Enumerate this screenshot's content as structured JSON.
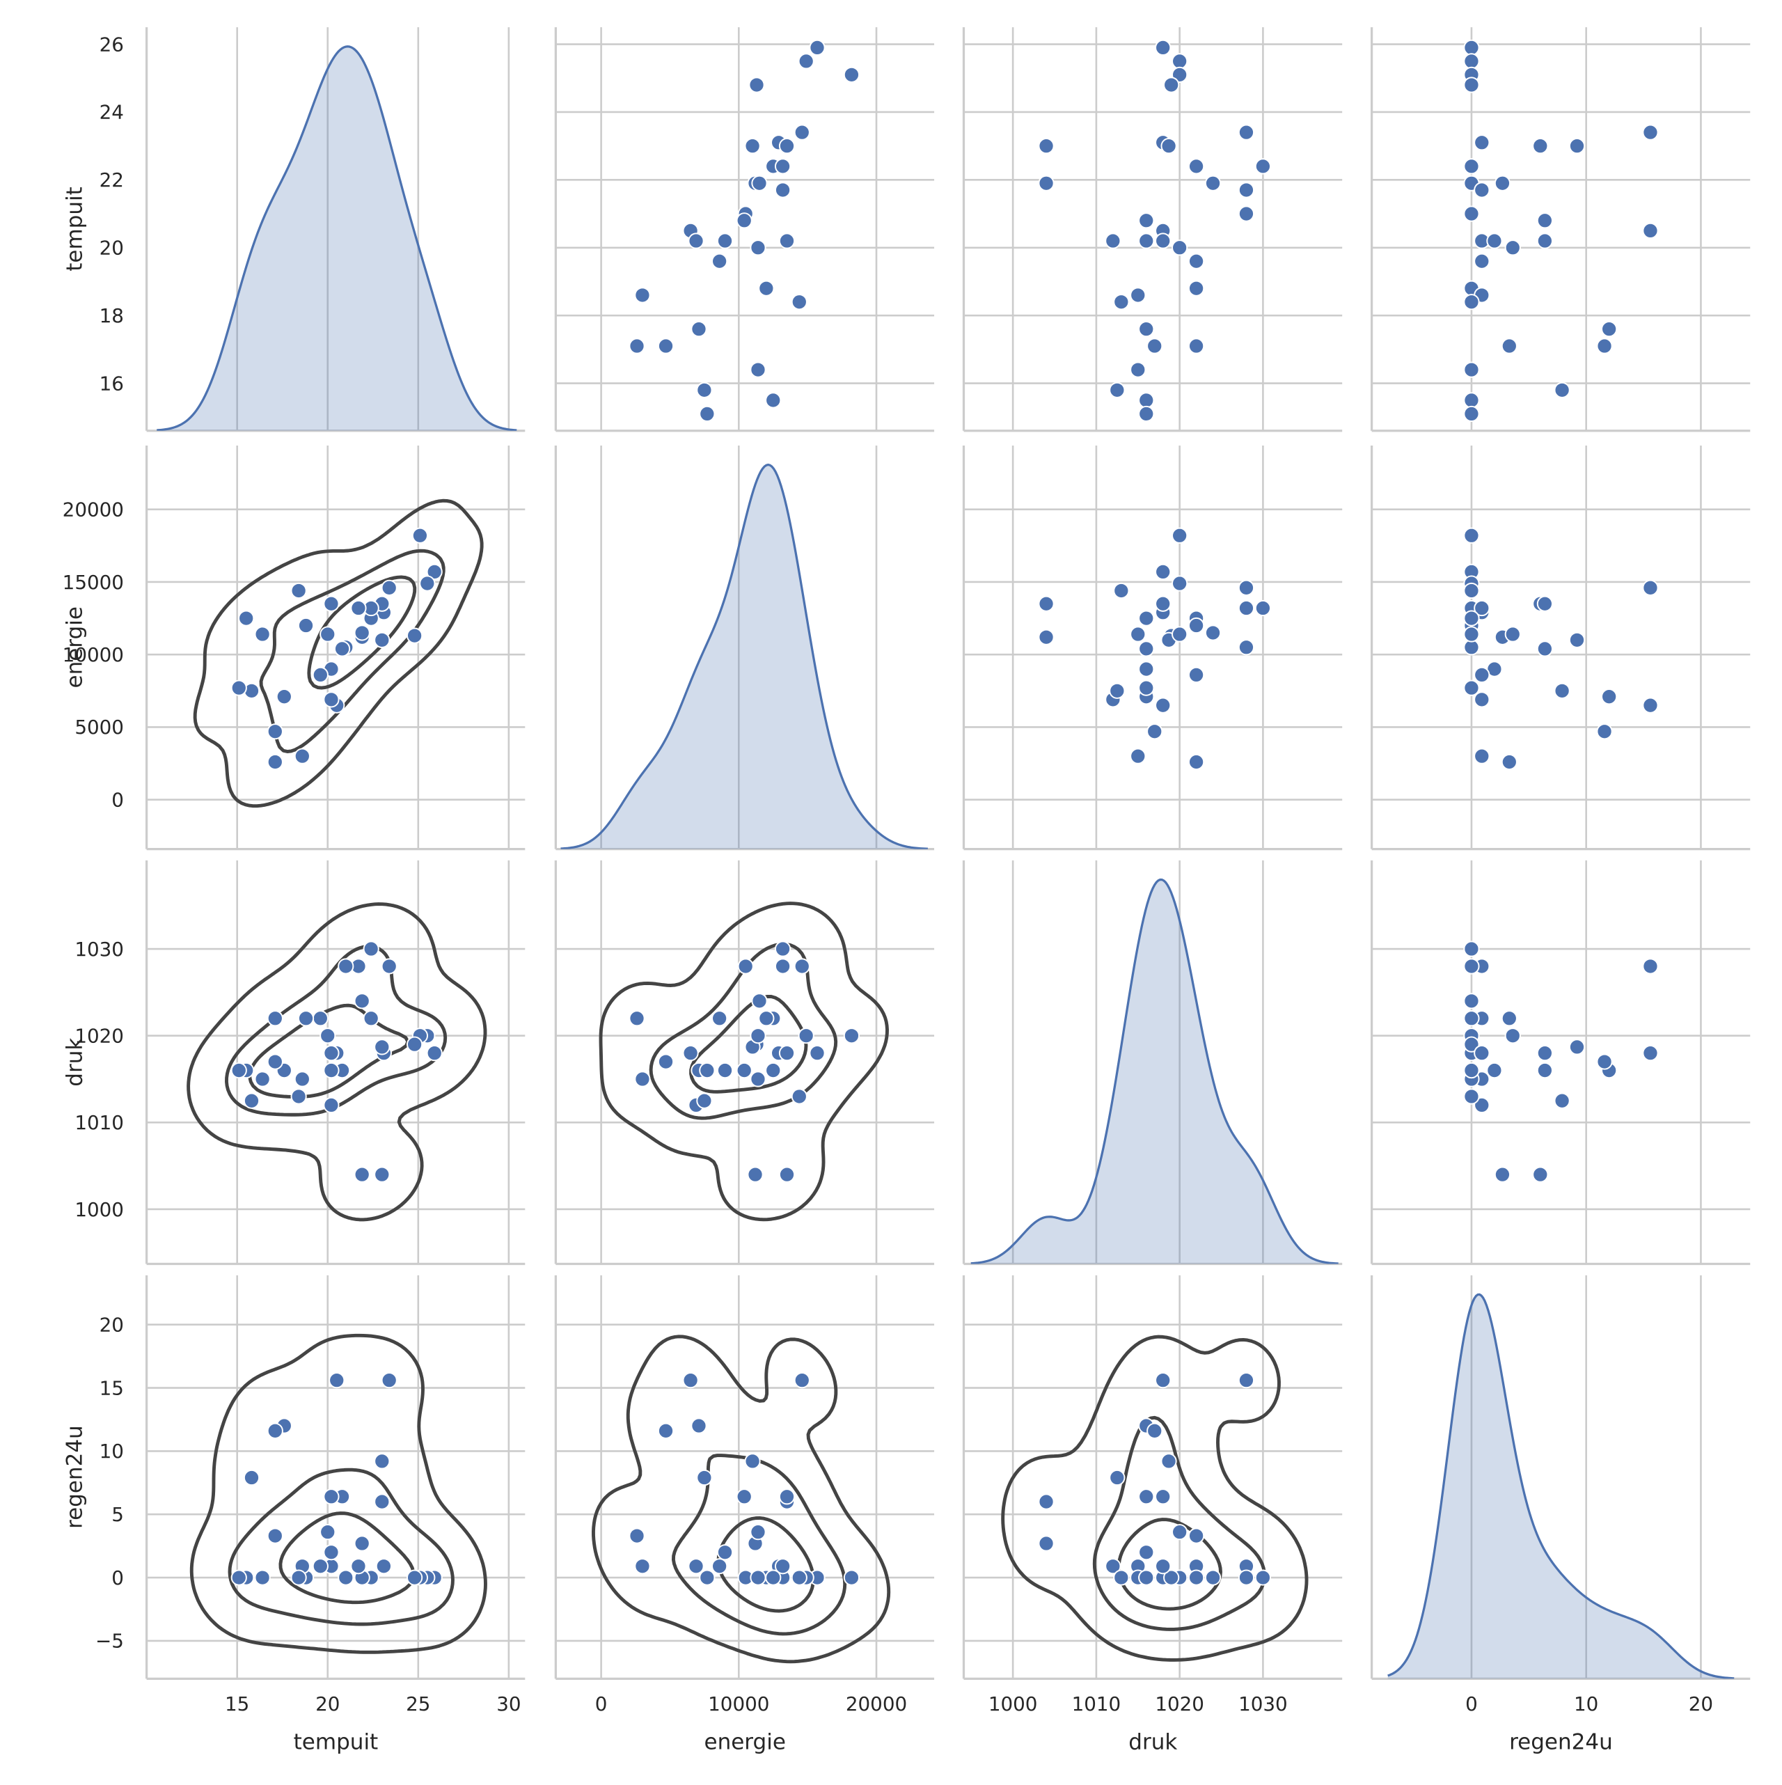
{
  "chart_data": {
    "type": "pairplot",
    "color": "#4c72b0",
    "contour_color": "#444444",
    "grid": true,
    "variables": [
      {
        "name": "tempuit",
        "values": [
          25.9,
          25.5,
          25.1,
          24.8,
          23.4,
          23.1,
          23.0,
          23.0,
          22.4,
          22.4,
          21.9,
          21.9,
          21.7,
          21.0,
          20.8,
          20.5,
          20.2,
          20.2,
          20.2,
          20.0,
          19.6,
          18.8,
          18.6,
          18.4,
          17.6,
          17.1,
          17.1,
          16.4,
          15.8,
          15.5,
          15.1
        ],
        "xlim": [
          10.0,
          30.9
        ],
        "xticks": [
          15,
          20,
          25,
          30
        ],
        "ylim": [
          14.6,
          26.5
        ],
        "yticks": [
          16,
          18,
          20,
          22,
          24,
          26
        ]
      },
      {
        "name": "energie",
        "values": [
          15700,
          14900,
          18200,
          11300,
          14600,
          12900,
          13500,
          11000,
          12500,
          13200,
          11200,
          11500,
          13200,
          10500,
          10400,
          6500,
          6900,
          9000,
          13500,
          11400,
          8600,
          12000,
          3000,
          14400,
          7100,
          2600,
          4700,
          11400,
          7500,
          12500,
          7700
        ],
        "xlim": [
          -3300,
          24200
        ],
        "xticks": [
          0,
          10000,
          20000
        ],
        "ylim": [
          -3400,
          24400
        ],
        "yticks": [
          0,
          5000,
          10000,
          15000,
          20000
        ]
      },
      {
        "name": "druk",
        "values": [
          1018,
          1020,
          1020,
          1019,
          1028,
          1018,
          1004,
          1018.7,
          1022,
          1030,
          1004,
          1024,
          1028,
          1028,
          1016,
          1018,
          1012,
          1016,
          1018,
          1020,
          1022,
          1022,
          1015,
          1013,
          1016,
          1022,
          1017,
          1015,
          1012.5,
          1016,
          1016
        ],
        "xlim": [
          994.1,
          1039.5
        ],
        "xticks": [
          1000,
          1010,
          1020,
          1030
        ],
        "ylim": [
          993.7,
          1040.2
        ],
        "yticks": [
          1000,
          1010,
          1020,
          1030
        ]
      },
      {
        "name": "regen24u",
        "values": [
          0,
          0,
          0,
          0,
          15.6,
          0.9,
          6.0,
          9.2,
          0,
          0,
          2.7,
          0,
          0.9,
          0,
          6.4,
          15.6,
          0.9,
          2.0,
          6.4,
          3.6,
          0.9,
          0,
          0.9,
          0,
          12.0,
          3.3,
          11.6,
          0,
          7.9,
          0,
          0
        ],
        "xlim": [
          -8.7,
          24.3
        ],
        "xticks": [
          0,
          10,
          20
        ],
        "ylim": [
          -8.0,
          23.9
        ],
        "yticks": [
          {
            "value": -5,
            "label": "−5"
          },
          0,
          5,
          10,
          15,
          20
        ]
      }
    ]
  }
}
